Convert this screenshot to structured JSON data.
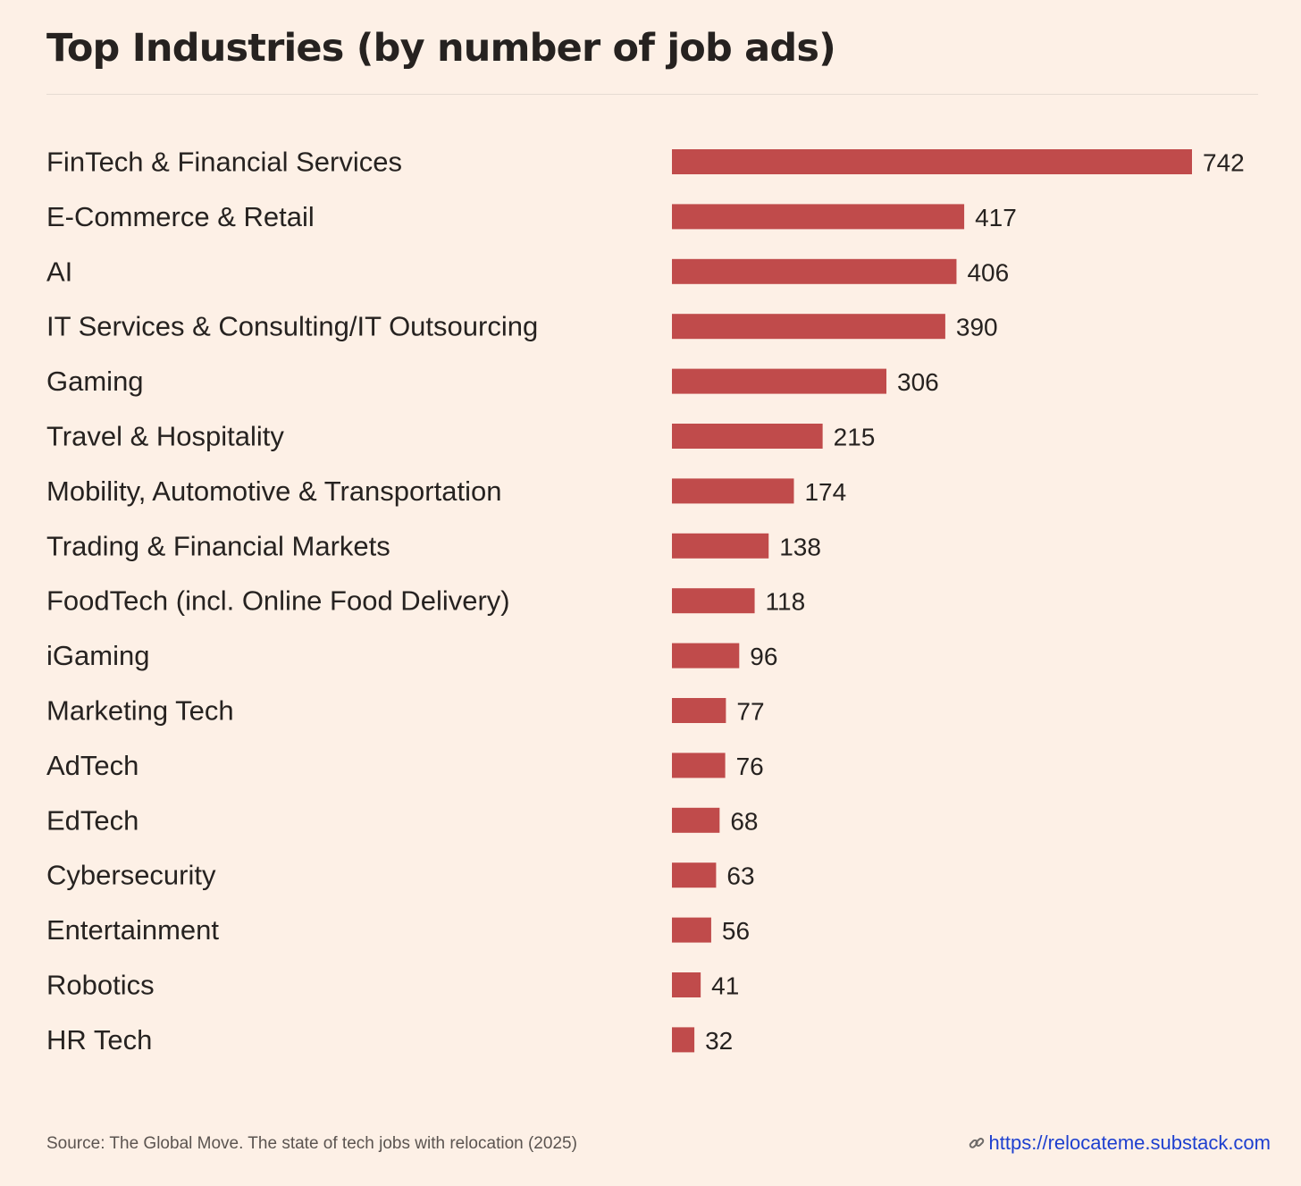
{
  "header": {
    "title": "Top Industries (by number of job ads)"
  },
  "footer": {
    "source": "Source: The Global Move. The state of tech jobs with relocation (2025)",
    "link_icon": "link-icon",
    "link_text": "https://relocateme.substack.com",
    "link_color": "#1d3fcf"
  },
  "colors": {
    "background": "#fdf0e6",
    "bar": "#c04b4b",
    "text": "#262220"
  },
  "chart_data": {
    "type": "bar",
    "orientation": "horizontal",
    "categories": [
      "FinTech & Financial Services",
      "E-Commerce & Retail",
      "AI",
      "IT Services & Consulting/IT Outsourcing",
      "Gaming",
      "Travel & Hospitality",
      "Mobility, Automotive & Transportation",
      "Trading & Financial Markets",
      "FoodTech (incl. Online Food Delivery)",
      "iGaming",
      "Marketing Tech",
      "AdTech",
      "EdTech",
      "Cybersecurity",
      "Entertainment",
      "Robotics",
      "HR Tech"
    ],
    "values": [
      742,
      417,
      406,
      390,
      306,
      215,
      174,
      138,
      118,
      96,
      77,
      76,
      68,
      63,
      56,
      41,
      32
    ],
    "title": "Top Industries (by number of job ads)",
    "xlabel": "",
    "ylabel": "",
    "xlim": [
      0,
      742
    ],
    "grid": false,
    "legend": "none",
    "data_labels": true
  }
}
